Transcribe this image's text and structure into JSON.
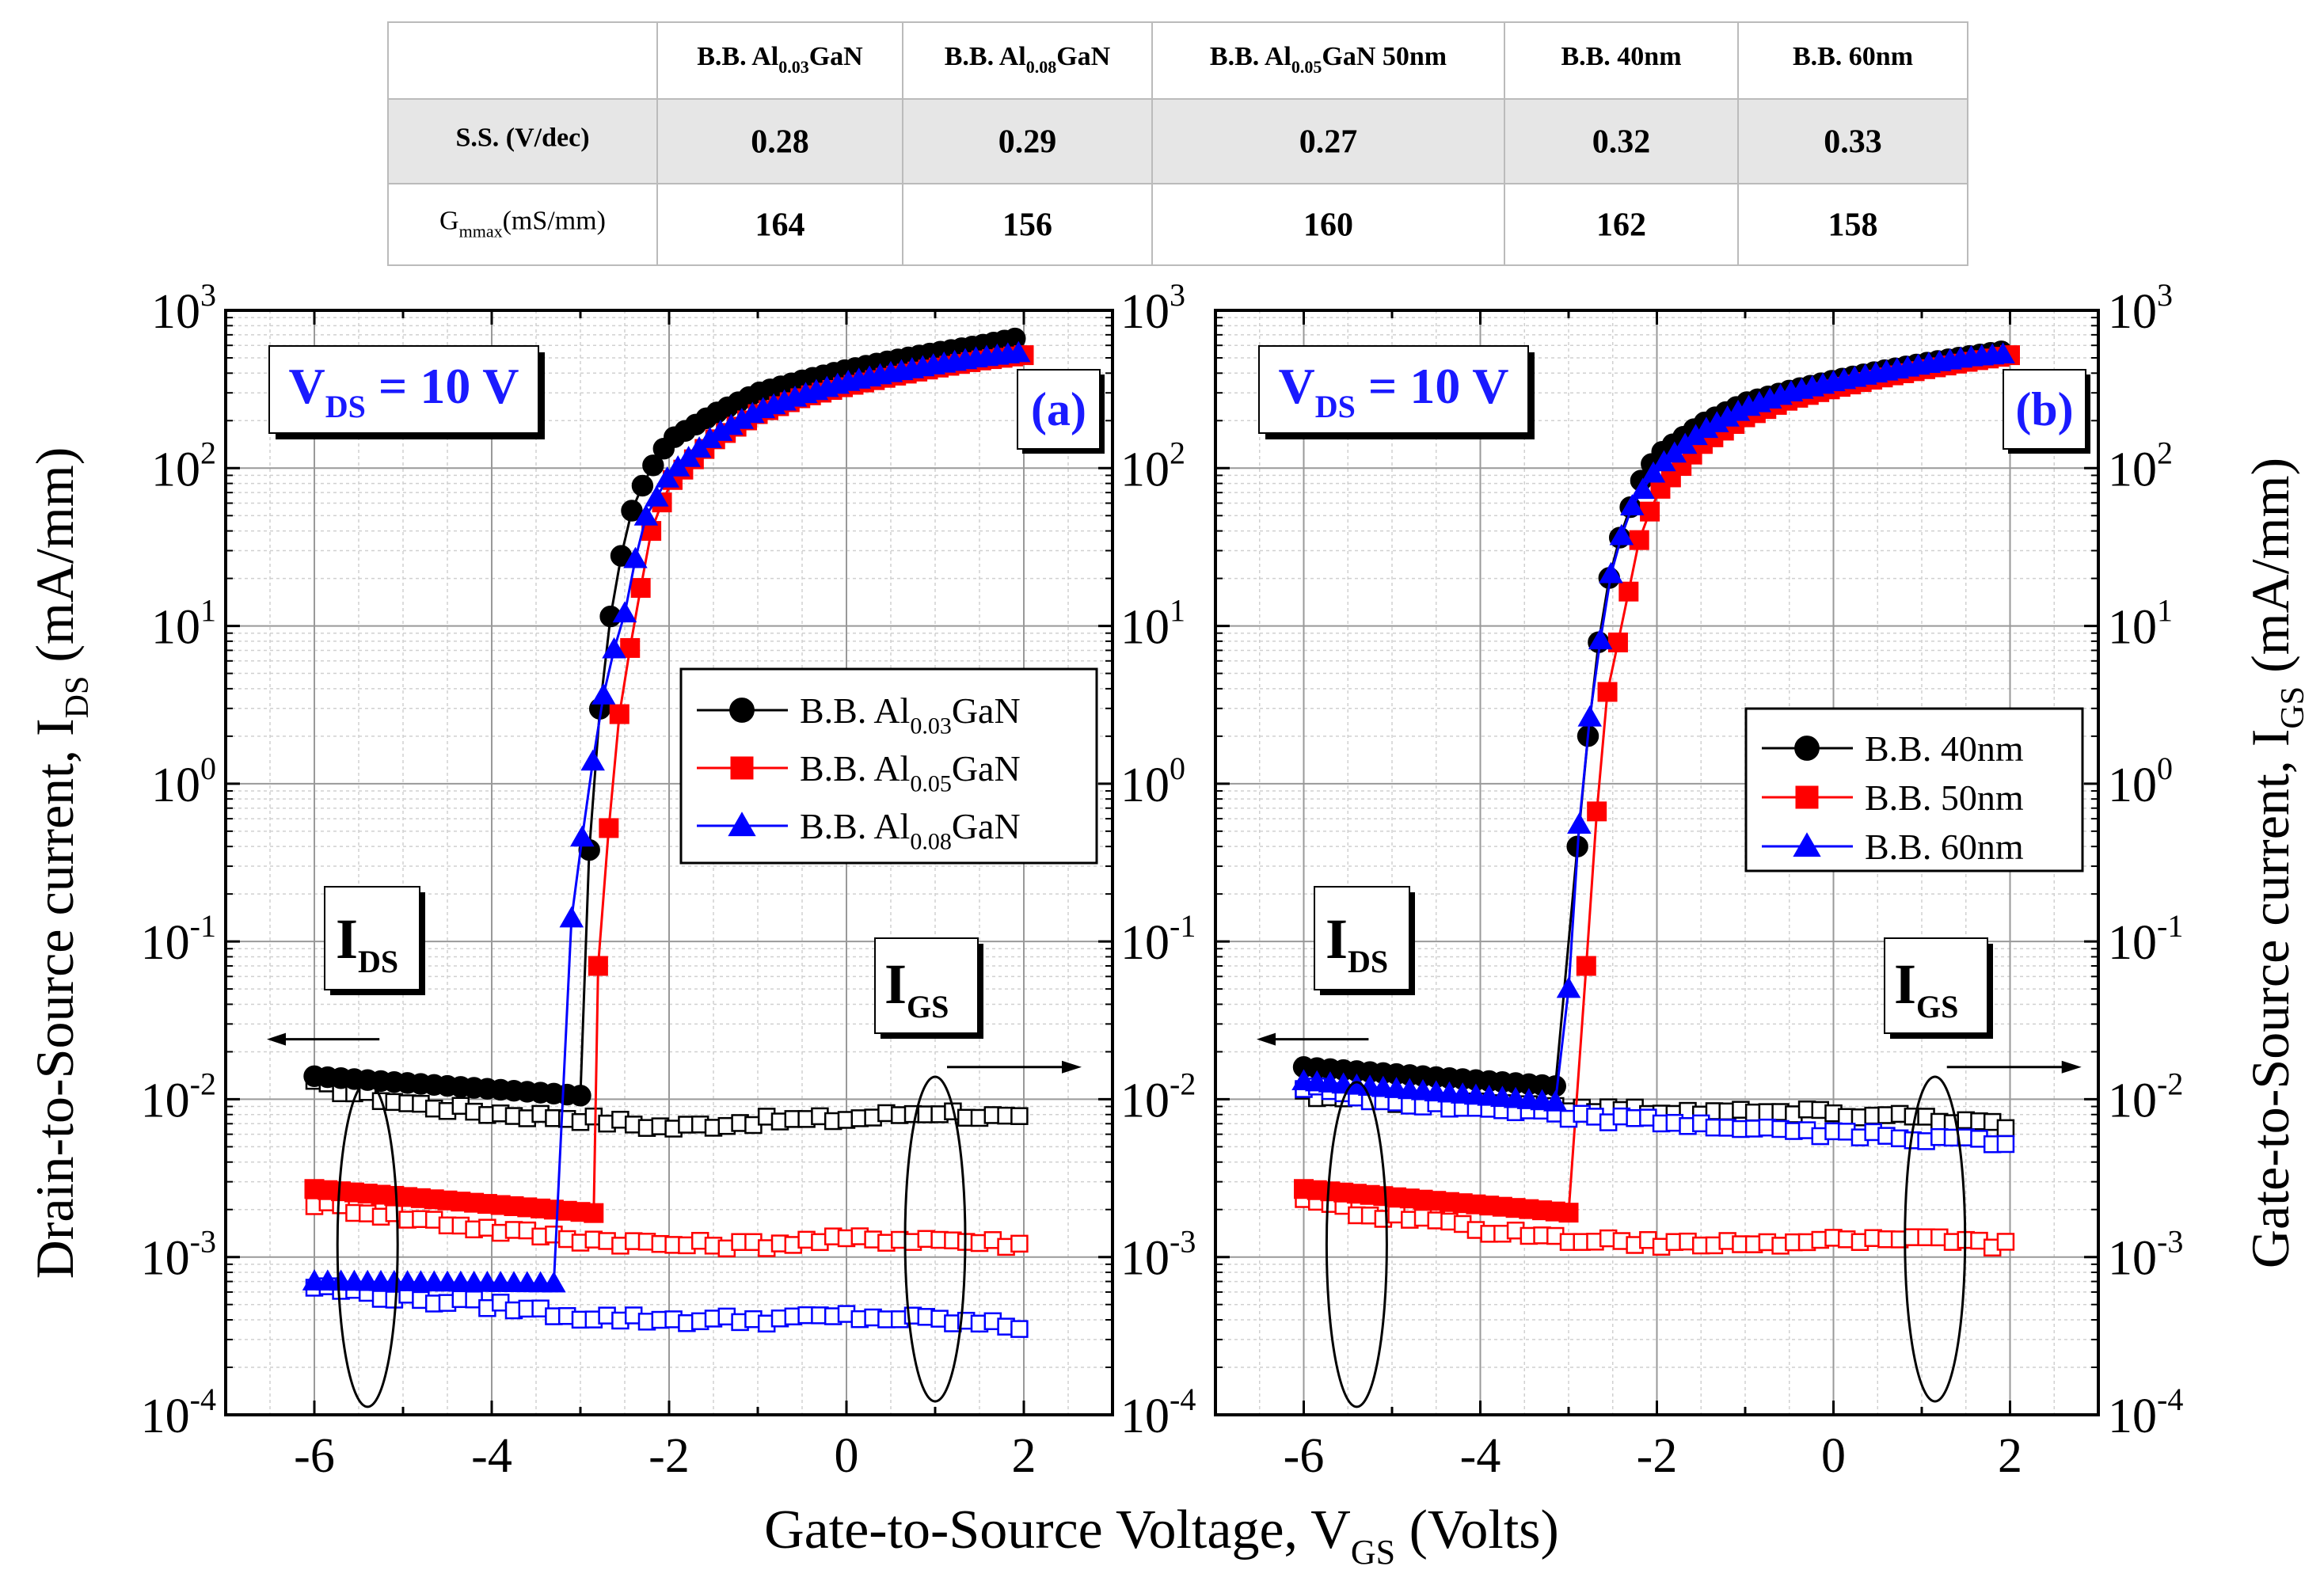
{
  "table": {
    "columns": [
      {
        "pre": "B.B. Al",
        "sub": "0.03",
        "post": "GaN"
      },
      {
        "pre": "B.B. Al",
        "sub": "0.08",
        "post": "GaN"
      },
      {
        "pre": "B.B. Al",
        "sub": "0.05",
        "post": "GaN 50nm"
      },
      {
        "pre": "B.B. 40nm",
        "sub": "",
        "post": ""
      },
      {
        "pre": "B.B. 60nm",
        "sub": "",
        "post": ""
      }
    ],
    "rows": [
      {
        "label": {
          "pre": "S.S. (V/dec)",
          "sub": "",
          "post": ""
        },
        "values": [
          "0.28",
          "0.29",
          "0.27",
          "0.32",
          "0.33"
        ]
      },
      {
        "label": {
          "pre": "G",
          "sub": "mmax",
          "post": "(mS/mm)"
        },
        "values": [
          "164",
          "156",
          "160",
          "162",
          "158"
        ]
      }
    ]
  },
  "axis_text": {
    "xlabel": {
      "pre": "Gate-to-Source Voltage, V",
      "sub": "GS",
      "post": " (Volts)"
    },
    "ylabel_left": {
      "pre": "Drain-to-Source current, I",
      "sub": "DS",
      "post": " (mA/mm)"
    },
    "ylabel_right": {
      "pre": "Gate-to-Source current, I",
      "sub": "GS",
      "post": " (mA/mm)"
    },
    "x_ticks": [
      "-6",
      "-4",
      "-2",
      "0",
      "2"
    ],
    "y_tick_base": "10",
    "y_tick_exps": [
      "-4",
      "-3",
      "-2",
      "-1",
      "0",
      "1",
      "2",
      "3"
    ]
  },
  "colors": {
    "black": "#000000",
    "red": "#ff0000",
    "blue": "#0000ff",
    "annotation": "#1a1aff"
  },
  "chart_data": [
    {
      "type": "scatter",
      "panel_label": "(a)",
      "condition": {
        "pre": "V",
        "sub": "DS",
        "post": " = 10 V"
      },
      "annotations": {
        "ids": {
          "pre": "I",
          "sub": "DS",
          "post": ""
        },
        "igs": {
          "pre": "I",
          "sub": "GS",
          "post": ""
        }
      },
      "x_range": [
        -7,
        3
      ],
      "y_range": [
        0.0001,
        1000
      ],
      "y_scale": "log",
      "grid": true,
      "legend_position": "center-right",
      "series": [
        {
          "name": {
            "pre": "B.B. Al",
            "sub": "0.03",
            "post": "GaN"
          },
          "color": "black",
          "marker": "circle",
          "vth": -2.95,
          "off": [
            -6,
            0.014,
            0.0105
          ],
          "ids_on": [
            [
              -2.9,
              0.38
            ],
            [
              -2.75,
              5
            ],
            [
              -2.6,
              20
            ],
            [
              -2.4,
              60
            ],
            [
              -2.2,
              100
            ],
            [
              -2.0,
              150
            ],
            [
              -1.5,
              220
            ],
            [
              -1.0,
              300
            ],
            [
              -0.5,
              360
            ],
            [
              0.0,
              420
            ],
            [
              0.5,
              480
            ],
            [
              1.0,
              540
            ],
            [
              1.5,
              600
            ],
            [
              2.0,
              680
            ]
          ],
          "igs": [
            [
              -6,
              0.0125
            ],
            [
              -5,
              0.0095
            ],
            [
              -4,
              0.0082
            ],
            [
              -3,
              0.0076
            ],
            [
              -2,
              0.0066
            ],
            [
              -1,
              0.0073
            ],
            [
              0,
              0.0075
            ],
            [
              1,
              0.0084
            ],
            [
              2,
              0.0074
            ]
          ]
        },
        {
          "name": {
            "pre": "B.B. Al",
            "sub": "0.05",
            "post": "GaN"
          },
          "color": "red",
          "marker": "square",
          "vth": -2.85,
          "off": [
            -6,
            0.0027,
            0.0019
          ],
          "ids_on": [
            [
              -2.8,
              0.07
            ],
            [
              -2.6,
              2
            ],
            [
              -2.4,
              10
            ],
            [
              -2.2,
              40
            ],
            [
              -2.0,
              80
            ],
            [
              -1.5,
              150
            ],
            [
              -1.0,
              220
            ],
            [
              -0.5,
              280
            ],
            [
              0.0,
              330
            ],
            [
              0.5,
              380
            ],
            [
              1.0,
              430
            ],
            [
              1.5,
              480
            ],
            [
              2.0,
              520
            ]
          ],
          "igs": [
            [
              -6,
              0.0022
            ],
            [
              -5,
              0.0018
            ],
            [
              -4,
              0.0015
            ],
            [
              -3,
              0.0013
            ],
            [
              -2,
              0.0012
            ],
            [
              -1,
              0.0012
            ],
            [
              0,
              0.0013
            ],
            [
              1,
              0.0013
            ],
            [
              2,
              0.0012
            ]
          ]
        },
        {
          "name": {
            "pre": "B.B. Al",
            "sub": "0.08",
            "post": "GaN"
          },
          "color": "blue",
          "marker": "triangle",
          "vth": -3.3,
          "off": [
            -6,
            0.0007,
            0.00068
          ],
          "ids_on": [
            [
              -3.1,
              0.14
            ],
            [
              -2.9,
              1
            ],
            [
              -2.7,
              5
            ],
            [
              -2.5,
              12
            ],
            [
              -2.3,
              45
            ],
            [
              -2.0,
              90
            ],
            [
              -1.5,
              160
            ],
            [
              -1.0,
              230
            ],
            [
              -0.5,
              290
            ],
            [
              0.0,
              350
            ],
            [
              0.5,
              400
            ],
            [
              1.0,
              450
            ],
            [
              1.5,
              500
            ],
            [
              2.0,
              540
            ]
          ],
          "igs": [
            [
              -6,
              0.00065
            ],
            [
              -5,
              0.00055
            ],
            [
              -4,
              0.0005
            ],
            [
              -3,
              0.00042
            ],
            [
              -2,
              0.0004
            ],
            [
              -1,
              0.0004
            ],
            [
              0,
              0.00042
            ],
            [
              1,
              0.0004
            ],
            [
              2,
              0.00036
            ]
          ]
        }
      ]
    },
    {
      "type": "scatter",
      "panel_label": "(b)",
      "condition": {
        "pre": "V",
        "sub": "DS",
        "post": " = 10 V"
      },
      "annotations": {
        "ids": {
          "pre": "I",
          "sub": "DS",
          "post": ""
        },
        "igs": {
          "pre": "I",
          "sub": "GS",
          "post": ""
        }
      },
      "x_range": [
        -7,
        3
      ],
      "y_range": [
        0.0001,
        1000
      ],
      "y_scale": "log",
      "grid": true,
      "legend_position": "center-right",
      "series": [
        {
          "name": {
            "pre": "B.B. 40nm",
            "sub": "",
            "post": ""
          },
          "color": "black",
          "marker": "circle",
          "vth": -3.05,
          "off": [
            -6,
            0.016,
            0.012
          ],
          "ids_on": [
            [
              -2.9,
              0.4
            ],
            [
              -2.75,
              3
            ],
            [
              -2.6,
              15
            ],
            [
              -2.4,
              40
            ],
            [
              -2.2,
              80
            ],
            [
              -2.0,
              120
            ],
            [
              -1.5,
              190
            ],
            [
              -1.0,
              260
            ],
            [
              -0.5,
              310
            ],
            [
              0.0,
              360
            ],
            [
              0.5,
              410
            ],
            [
              1.0,
              460
            ],
            [
              1.5,
              510
            ],
            [
              2.0,
              560
            ]
          ],
          "igs": [
            [
              -6,
              0.011
            ],
            [
              -5,
              0.0098
            ],
            [
              -4,
              0.0092
            ],
            [
              -3,
              0.0088
            ],
            [
              -2,
              0.0085
            ],
            [
              -1,
              0.0083
            ],
            [
              0,
              0.0082
            ],
            [
              1,
              0.0078
            ],
            [
              2,
              0.0068
            ]
          ]
        },
        {
          "name": {
            "pre": "B.B. 50nm",
            "sub": "",
            "post": ""
          },
          "color": "red",
          "marker": "square",
          "vth": -2.95,
          "off": [
            -6,
            0.0027,
            0.0019
          ],
          "ids_on": [
            [
              -2.8,
              0.07
            ],
            [
              -2.6,
              3
            ],
            [
              -2.4,
              10
            ],
            [
              -2.2,
              35
            ],
            [
              -2.0,
              70
            ],
            [
              -1.5,
              140
            ],
            [
              -1.0,
              210
            ],
            [
              -0.5,
              270
            ],
            [
              0.0,
              320
            ],
            [
              0.5,
              370
            ],
            [
              1.0,
              420
            ],
            [
              1.5,
              470
            ],
            [
              2.0,
              520
            ]
          ],
          "igs": [
            [
              -6,
              0.0022
            ],
            [
              -5,
              0.0018
            ],
            [
              -4,
              0.0015
            ],
            [
              -3,
              0.0013
            ],
            [
              -2,
              0.0012
            ],
            [
              -1,
              0.0012
            ],
            [
              0,
              0.0013
            ],
            [
              1,
              0.0013
            ],
            [
              2,
              0.0012
            ]
          ]
        },
        {
          "name": {
            "pre": "B.B. 60nm",
            "sub": "",
            "post": ""
          },
          "color": "blue",
          "marker": "triangle",
          "vth": -3.1,
          "off": [
            -6,
            0.013,
            0.0095
          ],
          "ids_on": [
            [
              -3.0,
              0.05
            ],
            [
              -2.85,
              1
            ],
            [
              -2.7,
              5
            ],
            [
              -2.5,
              25
            ],
            [
              -2.3,
              55
            ],
            [
              -2.0,
              100
            ],
            [
              -1.5,
              170
            ],
            [
              -1.0,
              240
            ],
            [
              -0.5,
              300
            ],
            [
              0.0,
              350
            ],
            [
              0.5,
              400
            ],
            [
              1.0,
              450
            ],
            [
              1.5,
              500
            ],
            [
              2.0,
              530
            ]
          ],
          "igs": [
            [
              -6,
              0.012
            ],
            [
              -5,
              0.0095
            ],
            [
              -4,
              0.0085
            ],
            [
              -3,
              0.0078
            ],
            [
              -2,
              0.0072
            ],
            [
              -1,
              0.0066
            ],
            [
              0,
              0.006
            ],
            [
              1,
              0.0058
            ],
            [
              2,
              0.0052
            ]
          ]
        }
      ]
    }
  ]
}
